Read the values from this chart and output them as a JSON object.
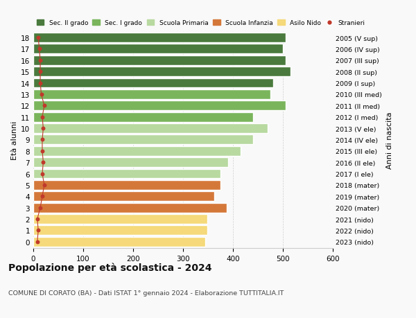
{
  "ages": [
    18,
    17,
    16,
    15,
    14,
    13,
    12,
    11,
    10,
    9,
    8,
    7,
    6,
    5,
    4,
    3,
    2,
    1,
    0
  ],
  "bar_values": [
    505,
    500,
    505,
    515,
    480,
    475,
    505,
    440,
    470,
    440,
    415,
    390,
    375,
    375,
    362,
    388,
    348,
    348,
    345
  ],
  "stranieri_values": [
    10,
    12,
    14,
    14,
    14,
    16,
    22,
    18,
    20,
    18,
    18,
    20,
    18,
    22,
    18,
    14,
    8,
    10,
    8
  ],
  "right_labels": [
    "2005 (V sup)",
    "2006 (IV sup)",
    "2007 (III sup)",
    "2008 (II sup)",
    "2009 (I sup)",
    "2010 (III med)",
    "2011 (II med)",
    "2012 (I med)",
    "2013 (V ele)",
    "2014 (IV ele)",
    "2015 (III ele)",
    "2016 (II ele)",
    "2017 (I ele)",
    "2018 (mater)",
    "2019 (mater)",
    "2020 (mater)",
    "2021 (nido)",
    "2022 (nido)",
    "2023 (nido)"
  ],
  "bar_colors": [
    "#4a7a3d",
    "#4a7a3d",
    "#4a7a3d",
    "#4a7a3d",
    "#4a7a3d",
    "#7ab55c",
    "#7ab55c",
    "#7ab55c",
    "#b8d9a0",
    "#b8d9a0",
    "#b8d9a0",
    "#b8d9a0",
    "#b8d9a0",
    "#d4783a",
    "#d4783a",
    "#d4783a",
    "#f5d97a",
    "#f5d97a",
    "#f5d97a"
  ],
  "legend_labels": [
    "Sec. II grado",
    "Sec. I grado",
    "Scuola Primaria",
    "Scuola Infanzia",
    "Asilo Nido",
    "Stranieri"
  ],
  "legend_colors": [
    "#4a7a3d",
    "#7ab55c",
    "#b8d9a0",
    "#d4783a",
    "#f5d97a",
    "#c0392b"
  ],
  "stranieri_color": "#c0392b",
  "ylabel_left": "Età alunni",
  "ylabel_right": "Anni di nascita",
  "title": "Popolazione per età scolastica - 2024",
  "subtitle": "COMUNE DI CORATO (BA) - Dati ISTAT 1° gennaio 2024 - Elaborazione TUTTITALIA.IT",
  "xlim": [
    0,
    600
  ],
  "bg_color": "#f9f9f9",
  "bar_edgecolor": "#ffffff"
}
